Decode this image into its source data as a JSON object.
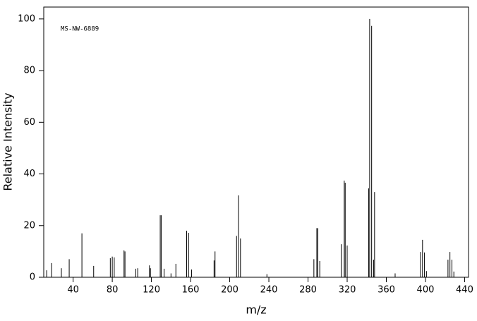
{
  "chart_data": {
    "type": "stem",
    "annotation": "MS-NW-6889",
    "x_label": "m/z",
    "y_label": "Relative Intensity",
    "color": "#000000",
    "x": [
      13,
      18,
      28,
      36,
      49,
      61,
      78,
      80,
      82,
      92,
      93,
      104,
      106,
      118,
      119,
      129,
      130,
      133,
      140,
      145,
      156,
      158,
      161,
      184,
      185,
      207,
      209,
      211,
      238,
      286,
      289,
      290,
      292,
      314,
      317,
      318,
      320,
      342,
      343,
      345,
      347,
      348,
      369,
      395,
      397,
      399,
      401,
      423,
      425,
      427,
      429
    ],
    "values": [
      2.7,
      5.5,
      3.5,
      7,
      17,
      4.4,
      7.4,
      8,
      7.7,
      10.4,
      10,
      3.3,
      3.5,
      4.6,
      3.5,
      24,
      24,
      3.3,
      1.5,
      5.2,
      18,
      17.2,
      3,
      6.5,
      10,
      16,
      31.7,
      15,
      1.2,
      7,
      19,
      19,
      6.3,
      12.8,
      37.4,
      36.6,
      12.3,
      34.4,
      100,
      97.3,
      6.8,
      33,
      1.5,
      9.8,
      14.5,
      9.6,
      2.4,
      6.8,
      9.8,
      6.8,
      2.2
    ],
    "xlim": [
      10,
      444
    ],
    "xticks": [
      40,
      80,
      120,
      160,
      200,
      240,
      280,
      320,
      360,
      400,
      440
    ],
    "ylim": [
      0,
      104.6
    ],
    "yticks": [
      0,
      20,
      40,
      60,
      80,
      100
    ]
  }
}
